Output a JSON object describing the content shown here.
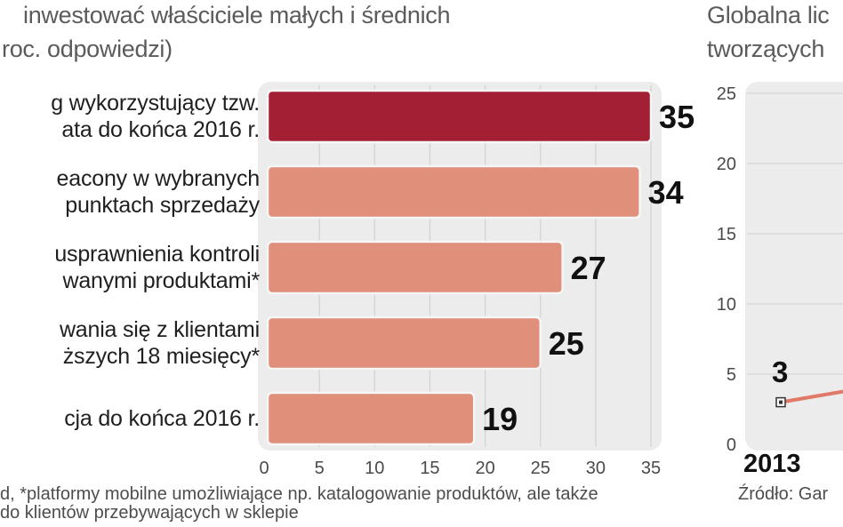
{
  "left_chart": {
    "title_lines": [
      "inwestować właściciele małych i średnich",
      "roc. odpowiedzi)"
    ],
    "footnote_lines": [
      "d, *platformy mobilne umożliwiające np. katalogowanie produktów, ale także",
      " do klientów przebywających w sklepie"
    ]
  },
  "right_chart": {
    "title_lines": [
      "Globalna lic",
      "tworzących"
    ],
    "footnote": "Źródło: Gar",
    "x_label": "2013",
    "point_label": "3"
  },
  "chart_data": [
    {
      "type": "bar",
      "orientation": "horizontal",
      "categories": [
        [
          "g wykorzystujący tzw.",
          "ata do końca 2016 r."
        ],
        [
          "eacony w wybranych",
          "punktach sprzedaży"
        ],
        [
          "usprawnienia kontroli",
          "wanymi produktami*"
        ],
        [
          "wania się z klientami",
          "ższych 18 miesięcy*"
        ],
        [
          "cja do końca 2016 r."
        ]
      ],
      "values": [
        35,
        34,
        27,
        25,
        19
      ],
      "xlim": [
        0,
        35
      ],
      "xticks": [
        0,
        5,
        10,
        15,
        20,
        25,
        30,
        35
      ],
      "colors": [
        "#a31f33",
        "#df8f7a",
        "#df8f7a",
        "#df8f7a",
        "#df8f7a"
      ],
      "grid": true
    },
    {
      "type": "line",
      "x": [
        "2013"
      ],
      "values": [
        3
      ],
      "ylim": [
        0,
        25
      ],
      "yticks": [
        0,
        5,
        10,
        15,
        20,
        25
      ],
      "line_color": "#e07a66",
      "grid": true
    }
  ]
}
